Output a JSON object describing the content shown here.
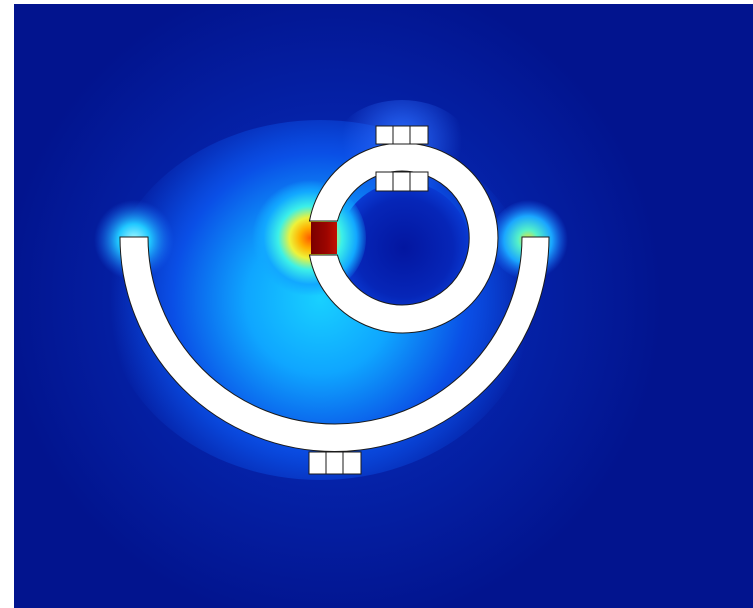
{
  "figure": {
    "colors": {
      "page_background": "#ffffff",
      "field_low": "#02148e",
      "field_mid": "#1f5cff",
      "field_cyan": "#19d4ff",
      "field_yellow": "#f4f21b",
      "field_red": "#e0100a",
      "field_max": "#7e0000",
      "structure_fill": "#ffffff",
      "structure_stroke": "#1a1a1a"
    }
  }
}
